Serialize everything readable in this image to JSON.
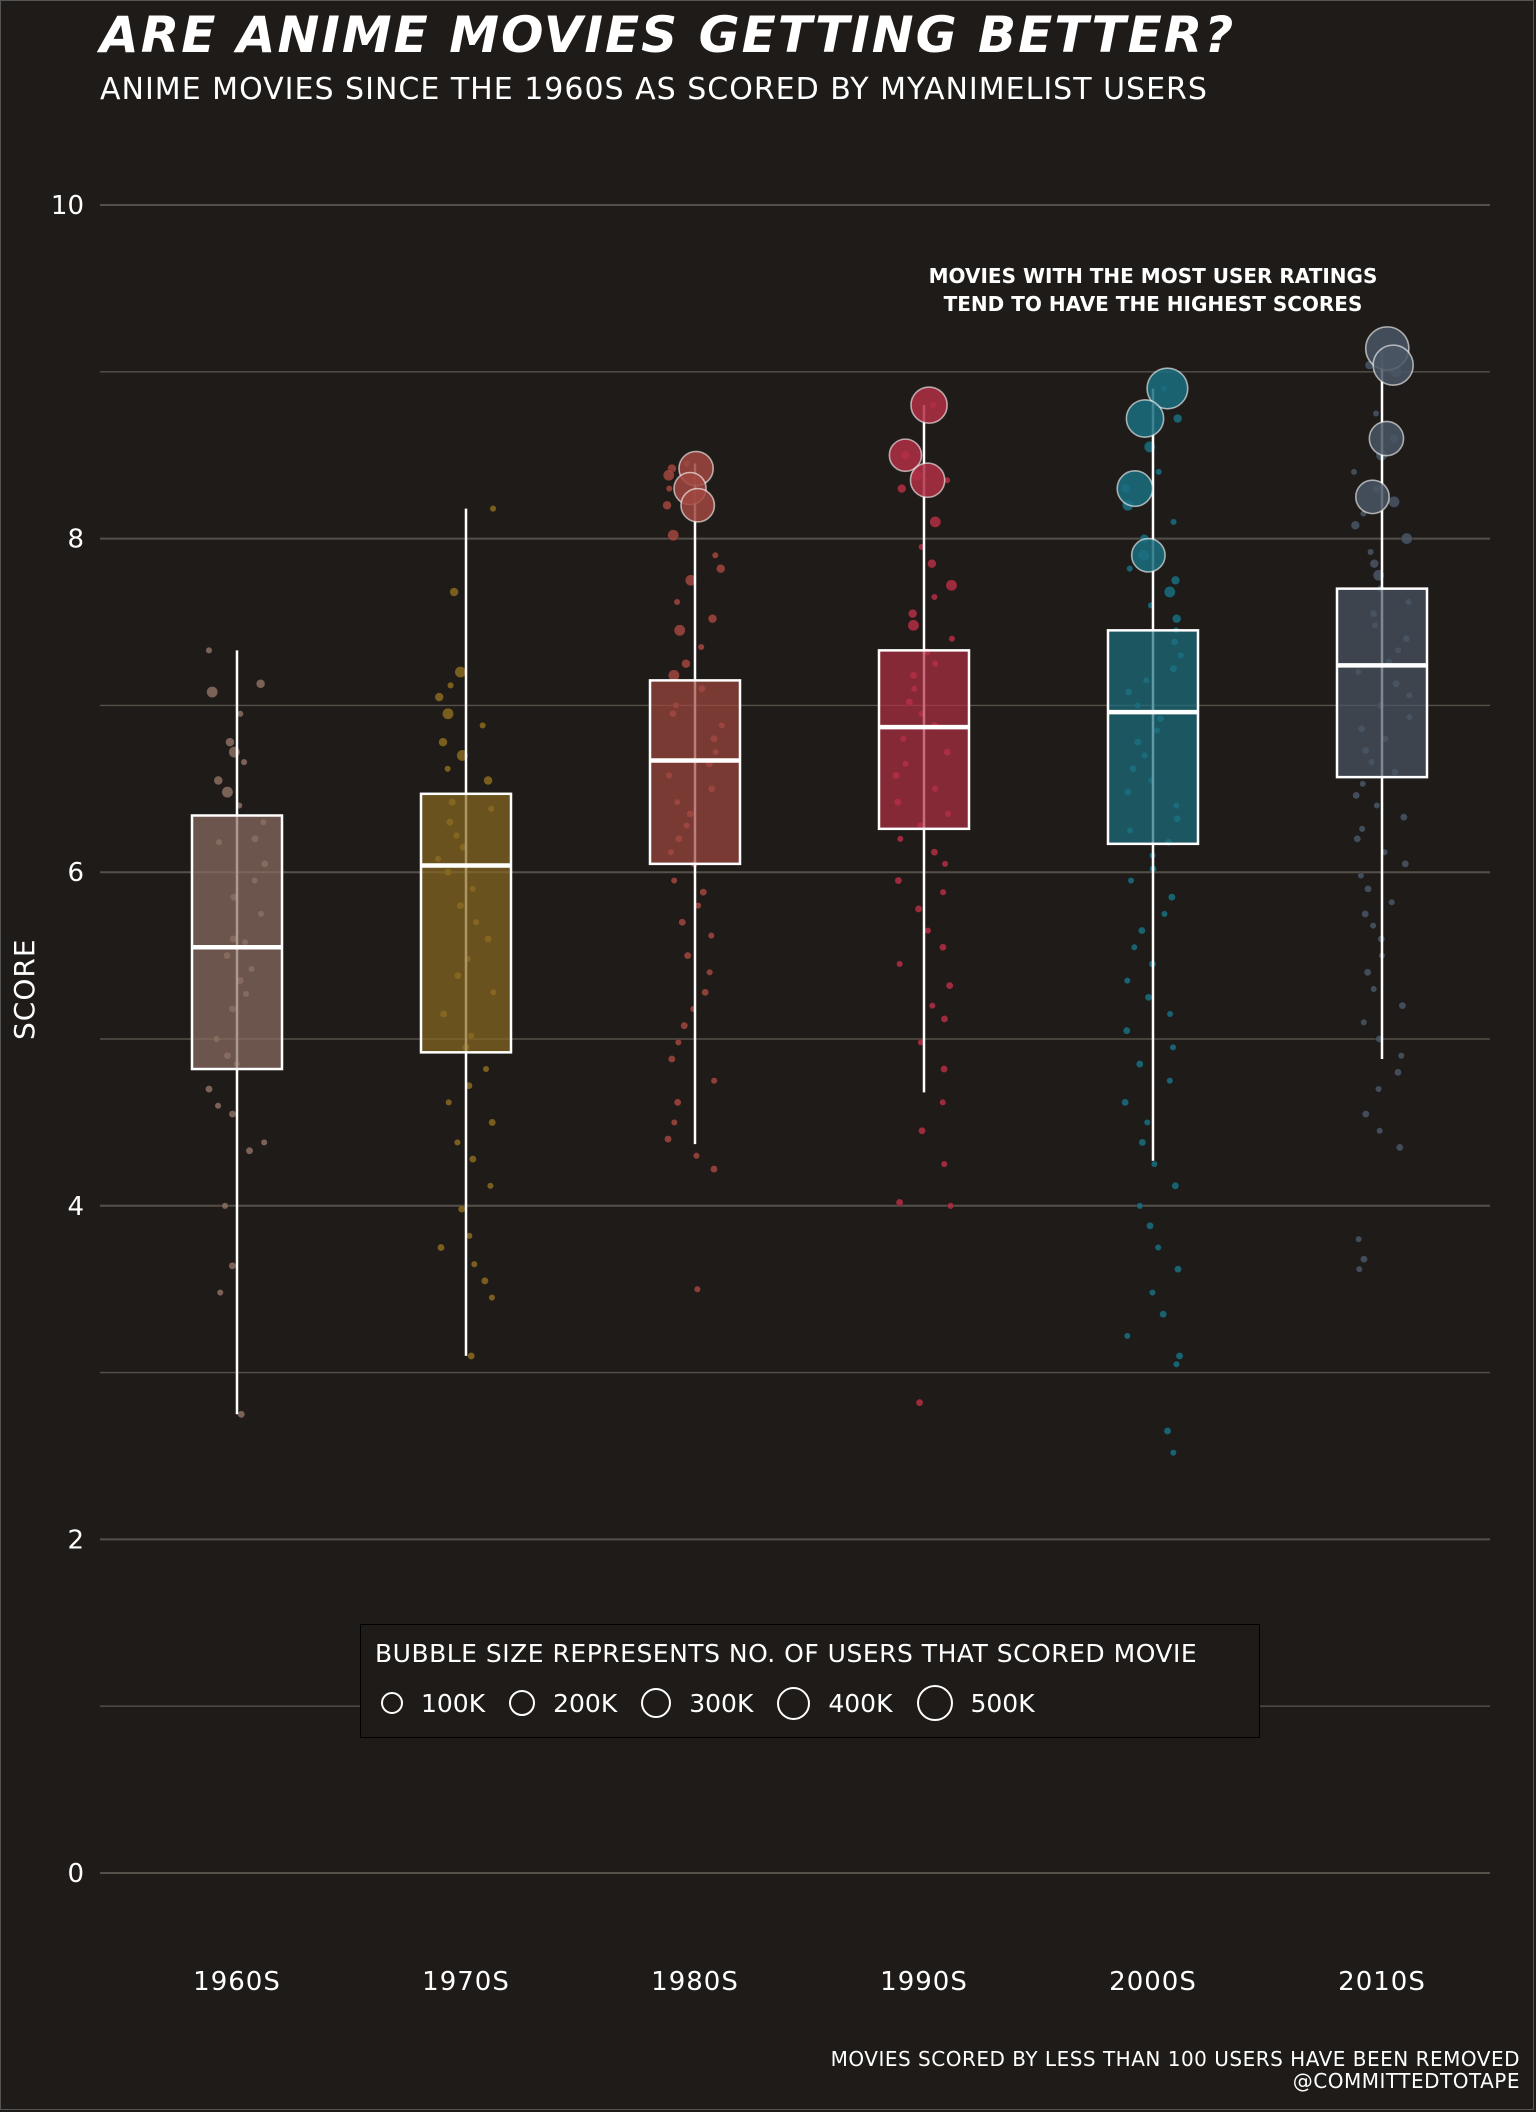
{
  "title": "Are anime movies getting better?",
  "subtitle": "Anime movies since the 1960s as scored by MyAnimeList users",
  "caption_line1": "Movies scored by less than 100 users have been removed",
  "caption_line2": "@committedtotape",
  "annotation_line1": "Movies with the most user ratings",
  "annotation_line2": "tend to have the highest scores",
  "legend": {
    "title": "Bubble size represents no. of users that scored movie",
    "items": [
      "100K",
      "200K",
      "300K",
      "400K",
      "500K"
    ]
  },
  "colors": {
    "background": "#1f1b18",
    "grid": "#555049",
    "box_outline": "#ffffff",
    "1960s": "#8c6e63",
    "1970s": "#8a6a22",
    "1980s": "#a04740",
    "1990s": "#b22f45",
    "2000s": "#1b6f80",
    "2010s": "#4a5665"
  },
  "chart_data": {
    "type": "box",
    "xlabel": "",
    "ylabel": "Score",
    "ylim": [
      0,
      10
    ],
    "yticks": [
      0,
      2,
      4,
      6,
      8,
      10
    ],
    "categories": [
      "1960s",
      "1970s",
      "1980s",
      "1990s",
      "2000s",
      "2010s"
    ],
    "series": [
      {
        "category": "1960s",
        "whisker_low": 2.75,
        "q1": 4.82,
        "median": 5.55,
        "q3": 6.34,
        "whisker_high": 7.33,
        "points": [
          7.33,
          7.13,
          7.08,
          6.95,
          6.78,
          6.72,
          6.66,
          6.55,
          6.48,
          6.4,
          6.3,
          6.2,
          6.18,
          6.05,
          5.95,
          5.85,
          5.75,
          5.6,
          5.58,
          5.5,
          5.42,
          5.35,
          5.27,
          5.18,
          5.0,
          4.9,
          4.85,
          4.7,
          4.6,
          4.55,
          4.38,
          4.33,
          4.0,
          3.64,
          3.48,
          2.75
        ]
      },
      {
        "category": "1970s",
        "whisker_low": 3.1,
        "q1": 4.92,
        "median": 6.04,
        "q3": 6.47,
        "whisker_high": 8.18,
        "points": [
          8.18,
          7.68,
          7.2,
          7.12,
          7.05,
          6.95,
          6.88,
          6.78,
          6.7,
          6.62,
          6.55,
          6.42,
          6.38,
          6.3,
          6.22,
          6.15,
          6.08,
          6.0,
          5.9,
          5.8,
          5.7,
          5.6,
          5.48,
          5.38,
          5.28,
          5.15,
          5.02,
          4.95,
          4.82,
          4.72,
          4.62,
          4.5,
          4.38,
          4.28,
          4.12,
          3.98,
          3.82,
          3.75,
          3.65,
          3.55,
          3.45,
          3.1
        ]
      },
      {
        "category": "1980s",
        "whisker_low": 4.37,
        "q1": 6.05,
        "median": 6.67,
        "q3": 7.15,
        "whisker_high": 8.45,
        "points": [
          8.45,
          8.42,
          8.38,
          8.3,
          8.2,
          8.02,
          7.9,
          7.82,
          7.75,
          7.62,
          7.52,
          7.45,
          7.35,
          7.25,
          7.18,
          7.1,
          7.0,
          6.95,
          6.88,
          6.8,
          6.72,
          6.65,
          6.58,
          6.5,
          6.42,
          6.35,
          6.28,
          6.2,
          6.12,
          6.05,
          5.95,
          5.88,
          5.8,
          5.7,
          5.62,
          5.5,
          5.4,
          5.28,
          5.18,
          5.08,
          4.98,
          4.88,
          4.75,
          4.62,
          4.5,
          4.4,
          4.3,
          4.22,
          3.5
        ]
      },
      {
        "category": "1990s",
        "whisker_low": 4.68,
        "q1": 6.26,
        "median": 6.87,
        "q3": 7.33,
        "whisker_high": 8.8,
        "points": [
          8.8,
          8.5,
          8.38,
          8.35,
          8.3,
          8.1,
          7.95,
          7.85,
          7.72,
          7.65,
          7.55,
          7.48,
          7.4,
          7.32,
          7.25,
          7.18,
          7.1,
          7.02,
          6.95,
          6.88,
          6.8,
          6.72,
          6.65,
          6.58,
          6.5,
          6.42,
          6.35,
          6.28,
          6.2,
          6.12,
          6.05,
          5.95,
          5.88,
          5.78,
          5.65,
          5.55,
          5.45,
          5.32,
          5.2,
          5.12,
          4.98,
          4.82,
          4.62,
          4.45,
          4.25,
          4.02,
          4.0,
          2.82
        ]
      },
      {
        "category": "2000s",
        "whisker_low": 4.27,
        "q1": 6.17,
        "median": 6.96,
        "q3": 7.45,
        "whisker_high": 8.9,
        "points": [
          8.9,
          8.72,
          8.55,
          8.4,
          8.3,
          8.2,
          8.1,
          8.0,
          7.9,
          7.82,
          7.75,
          7.68,
          7.6,
          7.52,
          7.45,
          7.38,
          7.3,
          7.22,
          7.15,
          7.08,
          7.0,
          6.92,
          6.85,
          6.78,
          6.7,
          6.62,
          6.55,
          6.48,
          6.4,
          6.32,
          6.25,
          6.18,
          6.1,
          6.02,
          5.95,
          5.85,
          5.75,
          5.65,
          5.55,
          5.45,
          5.35,
          5.25,
          5.15,
          5.05,
          4.95,
          4.85,
          4.75,
          4.62,
          4.5,
          4.38,
          4.25,
          4.12,
          4.0,
          3.88,
          3.75,
          3.62,
          3.48,
          3.35,
          3.22,
          3.1,
          3.05,
          2.65,
          2.52
        ]
      },
      {
        "category": "2010s",
        "whisker_low": 4.88,
        "q1": 6.57,
        "median": 7.24,
        "q3": 7.7,
        "whisker_high": 9.14,
        "points": [
          9.14,
          9.04,
          9.0,
          8.75,
          8.6,
          8.5,
          8.4,
          8.3,
          8.22,
          8.15,
          8.08,
          8.0,
          7.92,
          7.85,
          7.78,
          7.7,
          7.62,
          7.55,
          7.48,
          7.4,
          7.33,
          7.26,
          7.2,
          7.13,
          7.06,
          7.0,
          6.93,
          6.86,
          6.8,
          6.73,
          6.66,
          6.6,
          6.53,
          6.46,
          6.4,
          6.33,
          6.26,
          6.2,
          6.12,
          6.05,
          5.98,
          5.9,
          5.82,
          5.75,
          5.68,
          5.6,
          5.5,
          5.4,
          5.3,
          5.2,
          5.1,
          5.0,
          4.9,
          4.8,
          4.7,
          4.55,
          4.45,
          4.35,
          3.8,
          3.68,
          3.62
        ]
      }
    ],
    "large_points": [
      {
        "category": "1980s",
        "y": 8.42,
        "users": 300000
      },
      {
        "category": "1980s",
        "y": 8.3,
        "users": 250000
      },
      {
        "category": "1980s",
        "y": 8.2,
        "users": 280000
      },
      {
        "category": "1990s",
        "y": 8.8,
        "users": 350000
      },
      {
        "category": "1990s",
        "y": 8.5,
        "users": 250000
      },
      {
        "category": "1990s",
        "y": 8.35,
        "users": 300000
      },
      {
        "category": "2000s",
        "y": 8.9,
        "users": 480000
      },
      {
        "category": "2000s",
        "y": 8.72,
        "users": 380000
      },
      {
        "category": "2000s",
        "y": 8.3,
        "users": 330000
      },
      {
        "category": "2000s",
        "y": 7.9,
        "users": 280000
      },
      {
        "category": "2010s",
        "y": 9.14,
        "users": 560000
      },
      {
        "category": "2010s",
        "y": 9.04,
        "users": 460000
      },
      {
        "category": "2010s",
        "y": 8.6,
        "users": 300000
      },
      {
        "category": "2010s",
        "y": 8.25,
        "users": 280000
      }
    ]
  }
}
